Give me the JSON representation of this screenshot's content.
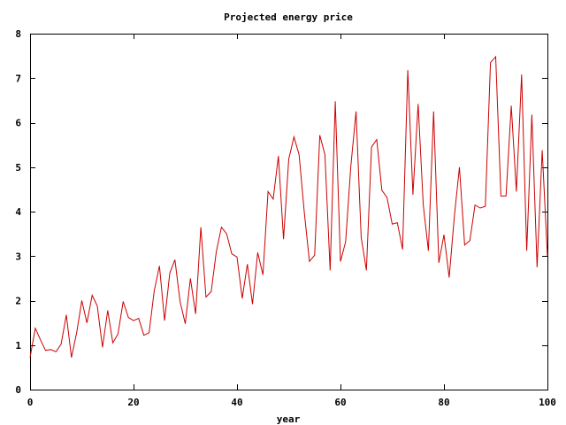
{
  "chart_data": {
    "type": "line",
    "title": "Projected energy price",
    "xlabel": "year",
    "ylabel": "",
    "xlim": [
      0,
      100
    ],
    "ylim": [
      0,
      8
    ],
    "x_ticks": [
      0,
      20,
      40,
      60,
      80,
      100
    ],
    "y_ticks": [
      0,
      1,
      2,
      3,
      4,
      5,
      6,
      7,
      8
    ],
    "grid": false,
    "legend": "none",
    "series_color": "#cc0000",
    "series": [
      {
        "x": [
          0,
          1,
          2,
          3,
          4,
          5,
          6,
          7,
          8,
          9,
          10,
          11,
          12,
          13,
          14,
          15,
          16,
          17,
          18,
          19,
          20,
          21,
          22,
          23,
          24,
          25,
          26,
          27,
          28,
          29,
          30,
          31,
          32,
          33,
          34,
          35,
          36,
          37,
          38,
          39,
          40,
          41,
          42,
          43,
          44,
          45,
          46,
          47,
          48,
          49,
          50,
          51,
          52,
          53,
          54,
          55,
          56,
          57,
          58,
          59,
          60,
          61,
          62,
          63,
          64,
          65,
          66,
          67,
          68,
          69,
          70,
          71,
          72,
          73,
          74,
          75,
          76,
          77,
          78,
          79,
          80,
          81,
          82,
          83,
          84,
          85,
          86,
          87,
          88,
          89,
          90,
          91,
          92,
          93,
          94,
          95,
          96,
          97,
          98,
          99,
          100
        ],
        "values": [
          0.72,
          1.38,
          1.12,
          0.88,
          0.9,
          0.85,
          1.02,
          1.68,
          0.72,
          1.28,
          2.0,
          1.5,
          2.12,
          1.88,
          0.95,
          1.78,
          1.05,
          1.25,
          1.98,
          1.62,
          1.55,
          1.6,
          1.22,
          1.28,
          2.22,
          2.78,
          1.55,
          2.62,
          2.92,
          1.98,
          1.48,
          2.5,
          1.7,
          3.65,
          2.08,
          2.2,
          3.1,
          3.65,
          3.5,
          3.05,
          2.98,
          2.05,
          2.82,
          1.92,
          3.08,
          2.58,
          4.45,
          4.28,
          5.25,
          3.38,
          5.18,
          5.68,
          5.28,
          3.98,
          2.88,
          3.02,
          5.72,
          5.28,
          2.68,
          6.48,
          2.88,
          3.32,
          5.02,
          6.25,
          3.42,
          2.68,
          5.45,
          5.62,
          4.48,
          4.32,
          3.72,
          3.75,
          3.15,
          7.18,
          4.38,
          6.42,
          4.15,
          3.12,
          6.25,
          2.85,
          3.48,
          2.52,
          3.88,
          5.0,
          3.25,
          3.35,
          4.15,
          4.08,
          4.12,
          7.35,
          7.48,
          4.35,
          4.35,
          6.38,
          4.45,
          7.08,
          3.12,
          6.18,
          2.75,
          5.38,
          3.0
        ]
      }
    ]
  }
}
